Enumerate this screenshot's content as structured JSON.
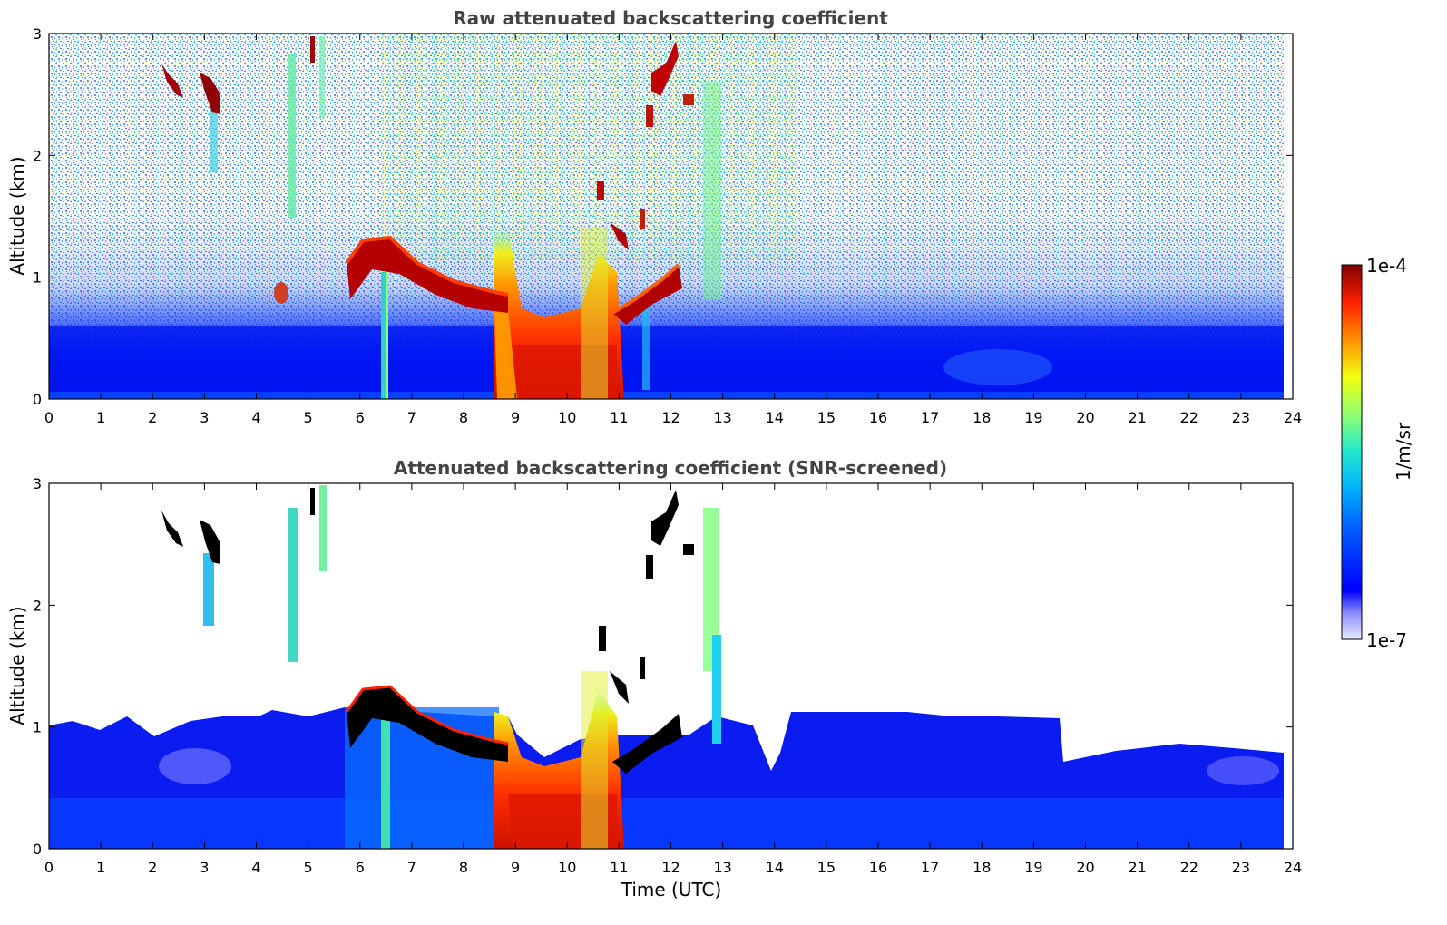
{
  "chart_data": [
    {
      "type": "heatmap",
      "title": "Raw attenuated backscattering coefficient",
      "xlabel": "",
      "ylabel": "Altitude (km)",
      "xlim": [
        0,
        24
      ],
      "ylim": [
        0,
        3
      ],
      "x_ticks": [
        "0",
        "1",
        "2",
        "3",
        "4",
        "5",
        "6",
        "7",
        "8",
        "9",
        "10",
        "11",
        "12",
        "13",
        "14",
        "15",
        "16",
        "17",
        "18",
        "19",
        "20",
        "21",
        "22",
        "23",
        "24"
      ],
      "y_ticks": [
        "0",
        "1",
        "2",
        "3"
      ],
      "data_extent_x": [
        0,
        23.8
      ],
      "colorscale": "jet",
      "features": [
        {
          "kind": "cloud_layer",
          "x_range": [
            5.7,
            12.2
          ],
          "altitude_km": [
            0.75,
            1.25
          ],
          "intensity": "high"
        },
        {
          "kind": "precip_plume",
          "x_range": [
            8.6,
            11.0
          ],
          "altitude_km": [
            0,
            0.9
          ],
          "intensity": "high"
        },
        {
          "kind": "elevated_cloud",
          "x_range": [
            2.2,
            3.3
          ],
          "altitude_km": [
            2.3,
            2.7
          ],
          "intensity": "high"
        },
        {
          "kind": "elevated_cloud",
          "x_range": [
            11.5,
            12.3
          ],
          "altitude_km": [
            2.2,
            3.0
          ],
          "intensity": "high"
        },
        {
          "kind": "boundary_layer",
          "x_range": [
            0,
            23.8
          ],
          "altitude_km": [
            0,
            0.6
          ],
          "intensity": "low"
        }
      ]
    },
    {
      "type": "heatmap",
      "title": "Attenuated backscattering coefficient (SNR-screened)",
      "xlabel": "Time (UTC)",
      "ylabel": "Altitude (km)",
      "xlim": [
        0,
        24
      ],
      "ylim": [
        0,
        3
      ],
      "x_ticks": [
        "0",
        "1",
        "2",
        "3",
        "4",
        "5",
        "6",
        "7",
        "8",
        "9",
        "10",
        "11",
        "12",
        "13",
        "14",
        "15",
        "16",
        "17",
        "18",
        "19",
        "20",
        "21",
        "22",
        "23",
        "24"
      ],
      "y_ticks": [
        "0",
        "1",
        "2",
        "3"
      ],
      "data_extent_x": [
        0,
        23.8
      ],
      "colorscale": "jet",
      "saturated_color": "#000000",
      "features": [
        {
          "kind": "cloud_layer",
          "x_range": [
            5.7,
            12.2
          ],
          "altitude_km": [
            0.75,
            1.3
          ],
          "intensity": "saturated"
        },
        {
          "kind": "precip_plume",
          "x_range": [
            8.6,
            11.0
          ],
          "altitude_km": [
            0,
            0.9
          ],
          "intensity": "high"
        },
        {
          "kind": "screened_boundary_layer",
          "x_range": [
            0,
            23.8
          ],
          "altitude_km": [
            0,
            1.1
          ],
          "intensity": "low"
        }
      ]
    }
  ],
  "colorbar": {
    "label": "1/m/sr",
    "max_label": "1e-4",
    "min_label": "1e-7",
    "log_range": [
      -7,
      -4
    ]
  }
}
